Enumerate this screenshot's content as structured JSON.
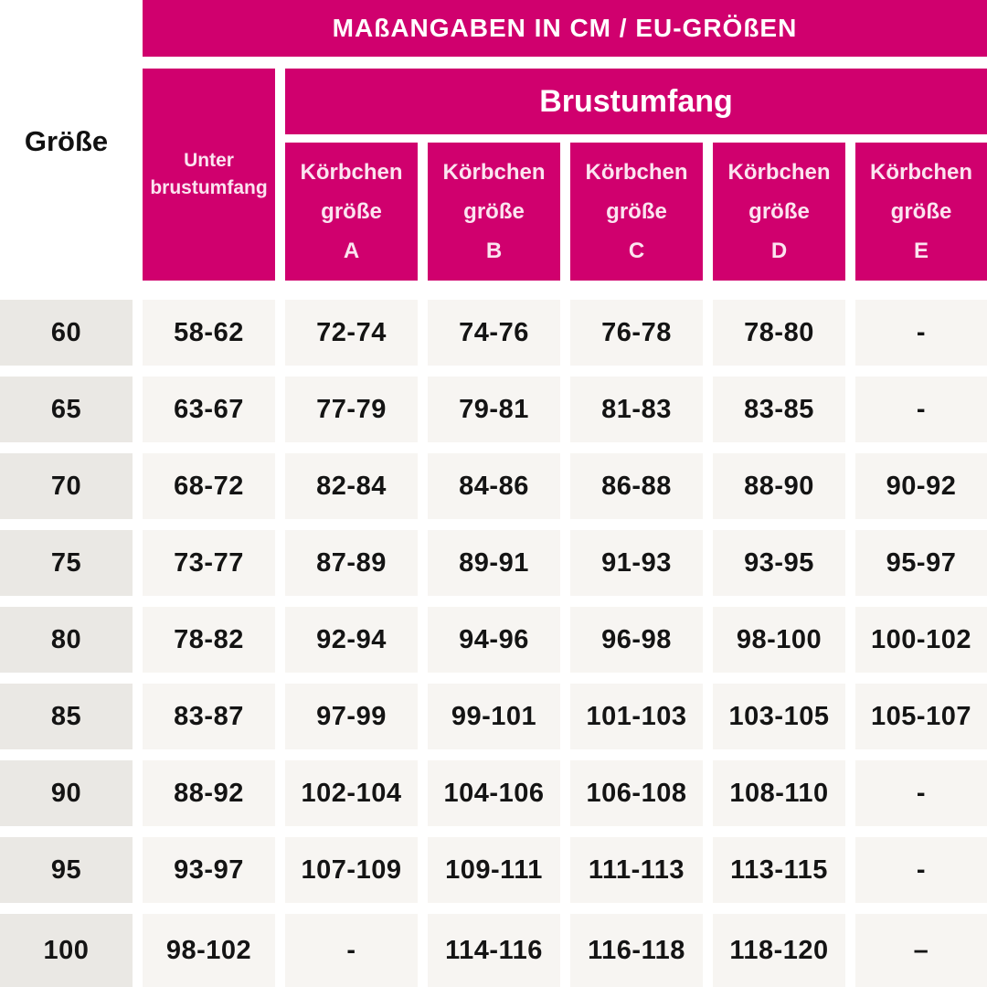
{
  "title": "MAßANGABEN IN CM / EU-GRÖßEN",
  "colors": {
    "accent_pink": "#D0006E",
    "size_col_gray": "#EAE8E4",
    "cell_gray": "#F7F5F2",
    "header_text": "#FBE4F0"
  },
  "header": {
    "size_label": "Größe",
    "underbust_line1": "Unter",
    "underbust_line2": "brustumfang",
    "bust_label": "Brustumfang",
    "cup_line1": "Körbchen",
    "cup_line2": "größe",
    "cup_letters": [
      "A",
      "B",
      "C",
      "D",
      "E"
    ]
  },
  "rows": [
    {
      "size": "60",
      "underbust": "58-62",
      "a": "72-74",
      "b": "74-76",
      "c": "76-78",
      "d": "78-80",
      "e": "-"
    },
    {
      "size": "65",
      "underbust": "63-67",
      "a": "77-79",
      "b": "79-81",
      "c": "81-83",
      "d": "83-85",
      "e": "-"
    },
    {
      "size": "70",
      "underbust": "68-72",
      "a": "82-84",
      "b": "84-86",
      "c": "86-88",
      "d": "88-90",
      "e": "90-92"
    },
    {
      "size": "75",
      "underbust": "73-77",
      "a": "87-89",
      "b": "89-91",
      "c": "91-93",
      "d": "93-95",
      "e": "95-97"
    },
    {
      "size": "80",
      "underbust": "78-82",
      "a": "92-94",
      "b": "94-96",
      "c": "96-98",
      "d": "98-100",
      "e": "100-102"
    },
    {
      "size": "85",
      "underbust": "83-87",
      "a": "97-99",
      "b": "99-101",
      "c": "101-103",
      "d": "103-105",
      "e": "105-107"
    },
    {
      "size": "90",
      "underbust": "88-92",
      "a": "102-104",
      "b": "104-106",
      "c": "106-108",
      "d": "108-110",
      "e": "-"
    },
    {
      "size": "95",
      "underbust": "93-97",
      "a": "107-109",
      "b": "109-111",
      "c": "111-113",
      "d": "113-115",
      "e": "-"
    },
    {
      "size": "100",
      "underbust": "98-102",
      "a": "-",
      "b": "114-116",
      "c": "116-118",
      "d": "118-120",
      "e": "–"
    }
  ],
  "chart_data": {
    "type": "table",
    "title": "MAßANGABEN IN CM / EU-GRÖßEN",
    "column_headers": [
      "Größe",
      "Unterbrustumfang",
      "Körbchengröße A",
      "Körbchengröße B",
      "Körbchengröße C",
      "Körbchengröße D",
      "Körbchengröße E"
    ],
    "group_header": {
      "label": "Brustumfang",
      "spans_columns": [
        "Körbchengröße A",
        "Körbchengröße B",
        "Körbchengröße C",
        "Körbchengröße D",
        "Körbchengröße E"
      ]
    },
    "rows": [
      [
        "60",
        "58-62",
        "72-74",
        "74-76",
        "76-78",
        "78-80",
        "-"
      ],
      [
        "65",
        "63-67",
        "77-79",
        "79-81",
        "81-83",
        "83-85",
        "-"
      ],
      [
        "70",
        "68-72",
        "82-84",
        "84-86",
        "86-88",
        "88-90",
        "90-92"
      ],
      [
        "75",
        "73-77",
        "87-89",
        "89-91",
        "91-93",
        "93-95",
        "95-97"
      ],
      [
        "80",
        "78-82",
        "92-94",
        "94-96",
        "96-98",
        "98-100",
        "100-102"
      ],
      [
        "85",
        "83-87",
        "97-99",
        "99-101",
        "101-103",
        "103-105",
        "105-107"
      ],
      [
        "90",
        "88-92",
        "102-104",
        "104-106",
        "106-108",
        "108-110",
        "-"
      ],
      [
        "95",
        "93-97",
        "107-109",
        "109-111",
        "111-113",
        "113-115",
        "-"
      ],
      [
        "100",
        "98-102",
        "-",
        "114-116",
        "116-118",
        "118-120",
        "–"
      ]
    ],
    "units": "cm",
    "sizing_system": "EU"
  }
}
